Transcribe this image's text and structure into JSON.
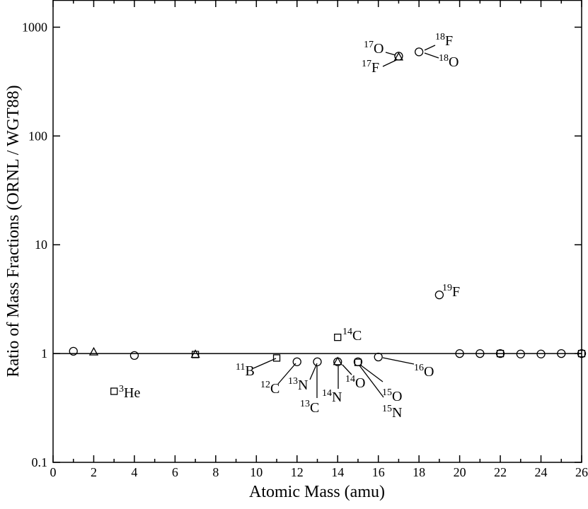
{
  "chart_data": {
    "type": "scatter",
    "xlabel": "Atomic Mass (amu)",
    "ylabel": "Ratio of Mass Fractions (ORNL / WGT88)",
    "xlim": [
      0,
      26
    ],
    "xticks": [
      0,
      2,
      4,
      6,
      8,
      10,
      12,
      14,
      16,
      18,
      20,
      22,
      24,
      26
    ],
    "ylim": [
      0.1,
      1778
    ],
    "yticks": [
      0.1,
      1,
      10,
      100,
      1000
    ],
    "log_y": true,
    "reference_line": 1,
    "series": [
      {
        "marker": "circle",
        "color": "#000000",
        "x": [
          1,
          4,
          12,
          13,
          14,
          15,
          16,
          17,
          18,
          19,
          20,
          21,
          22,
          23,
          24,
          25,
          26
        ],
        "values": [
          1.05,
          0.96,
          0.84,
          0.84,
          0.84,
          0.84,
          0.93,
          542,
          593,
          3.46,
          1.0,
          1.0,
          1.0,
          0.99,
          0.99,
          1.0,
          1.0
        ]
      },
      {
        "marker": "triangle",
        "color": "#000000",
        "x": [
          2,
          7,
          14,
          17
        ],
        "values": [
          1.03,
          0.98,
          0.84,
          530
        ]
      },
      {
        "marker": "square",
        "color": "#000000",
        "x": [
          3,
          7,
          11,
          14,
          15,
          22,
          26
        ],
        "values": [
          0.45,
          0.98,
          0.91,
          1.41,
          0.83,
          1.0,
          1.0
        ]
      }
    ],
    "annotations": [
      {
        "sup": "3",
        "text": "He"
      },
      {
        "sup": "11",
        "text": "B"
      },
      {
        "sup": "12",
        "text": "C"
      },
      {
        "sup": "13",
        "text": "N"
      },
      {
        "sup": "13",
        "text": "C"
      },
      {
        "sup": "14",
        "text": "N"
      },
      {
        "sup": "14",
        "text": "O"
      },
      {
        "sup": "15",
        "text": "O"
      },
      {
        "sup": "15",
        "text": "N"
      },
      {
        "sup": "16",
        "text": "O"
      },
      {
        "sup": "14",
        "text": "C"
      },
      {
        "sup": "19",
        "text": "F"
      },
      {
        "sup": "17",
        "text": "O"
      },
      {
        "sup": "17",
        "text": "F"
      },
      {
        "sup": "18",
        "text": "F"
      },
      {
        "sup": "18",
        "text": "O"
      }
    ]
  }
}
